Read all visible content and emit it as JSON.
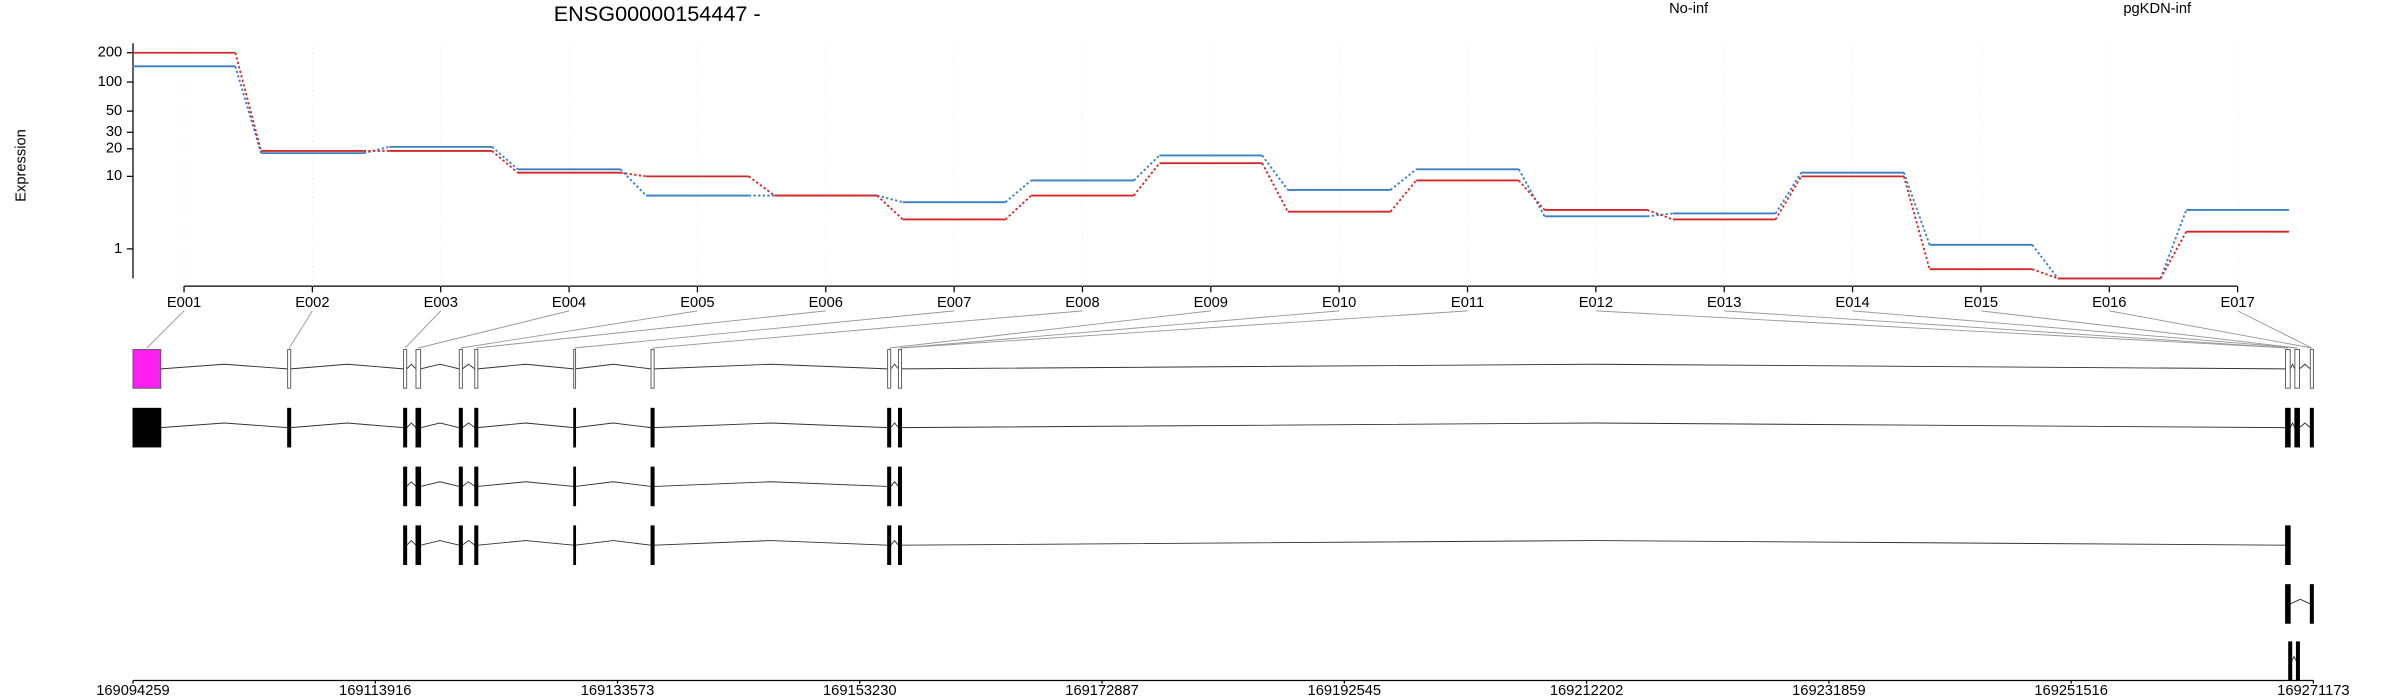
{
  "chart_data": [
    {
      "type": "line",
      "title": "ENSG00000154447 -",
      "y_label": "Expression",
      "yscale": "log1p",
      "grid": true,
      "categories": [
        "E001",
        "E002",
        "E003",
        "E004",
        "E005",
        "E006",
        "E007",
        "E008",
        "E009",
        "E010",
        "E011",
        "E012",
        "E013",
        "E014",
        "E015",
        "E016",
        "E017"
      ],
      "series": [
        {
          "name": "pgKDN-inf",
          "color": "#3b7fc4",
          "values": [
            145,
            18,
            21,
            12,
            6,
            6,
            5,
            9,
            17,
            7,
            12,
            3.3,
            3.6,
            11,
            1.2,
            0,
            4
          ]
        },
        {
          "name": "No-inf",
          "color": "#d62728",
          "values": [
            200,
            19,
            19,
            11,
            10,
            6,
            3,
            6,
            14,
            3.8,
            9,
            4,
            3,
            10,
            0.24,
            0,
            2
          ]
        }
      ],
      "ylim": [
        0,
        250
      ],
      "yticks": [
        1,
        10,
        20,
        30,
        50,
        100,
        200
      ]
    },
    {
      "type": "gene-model",
      "xlim": [
        169094259,
        169271173
      ],
      "xticks": [
        169094259,
        169113916,
        169133573,
        169153230,
        169172887,
        169192545,
        169212202,
        169231859,
        169251516,
        169271173
      ]
    }
  ]
}
